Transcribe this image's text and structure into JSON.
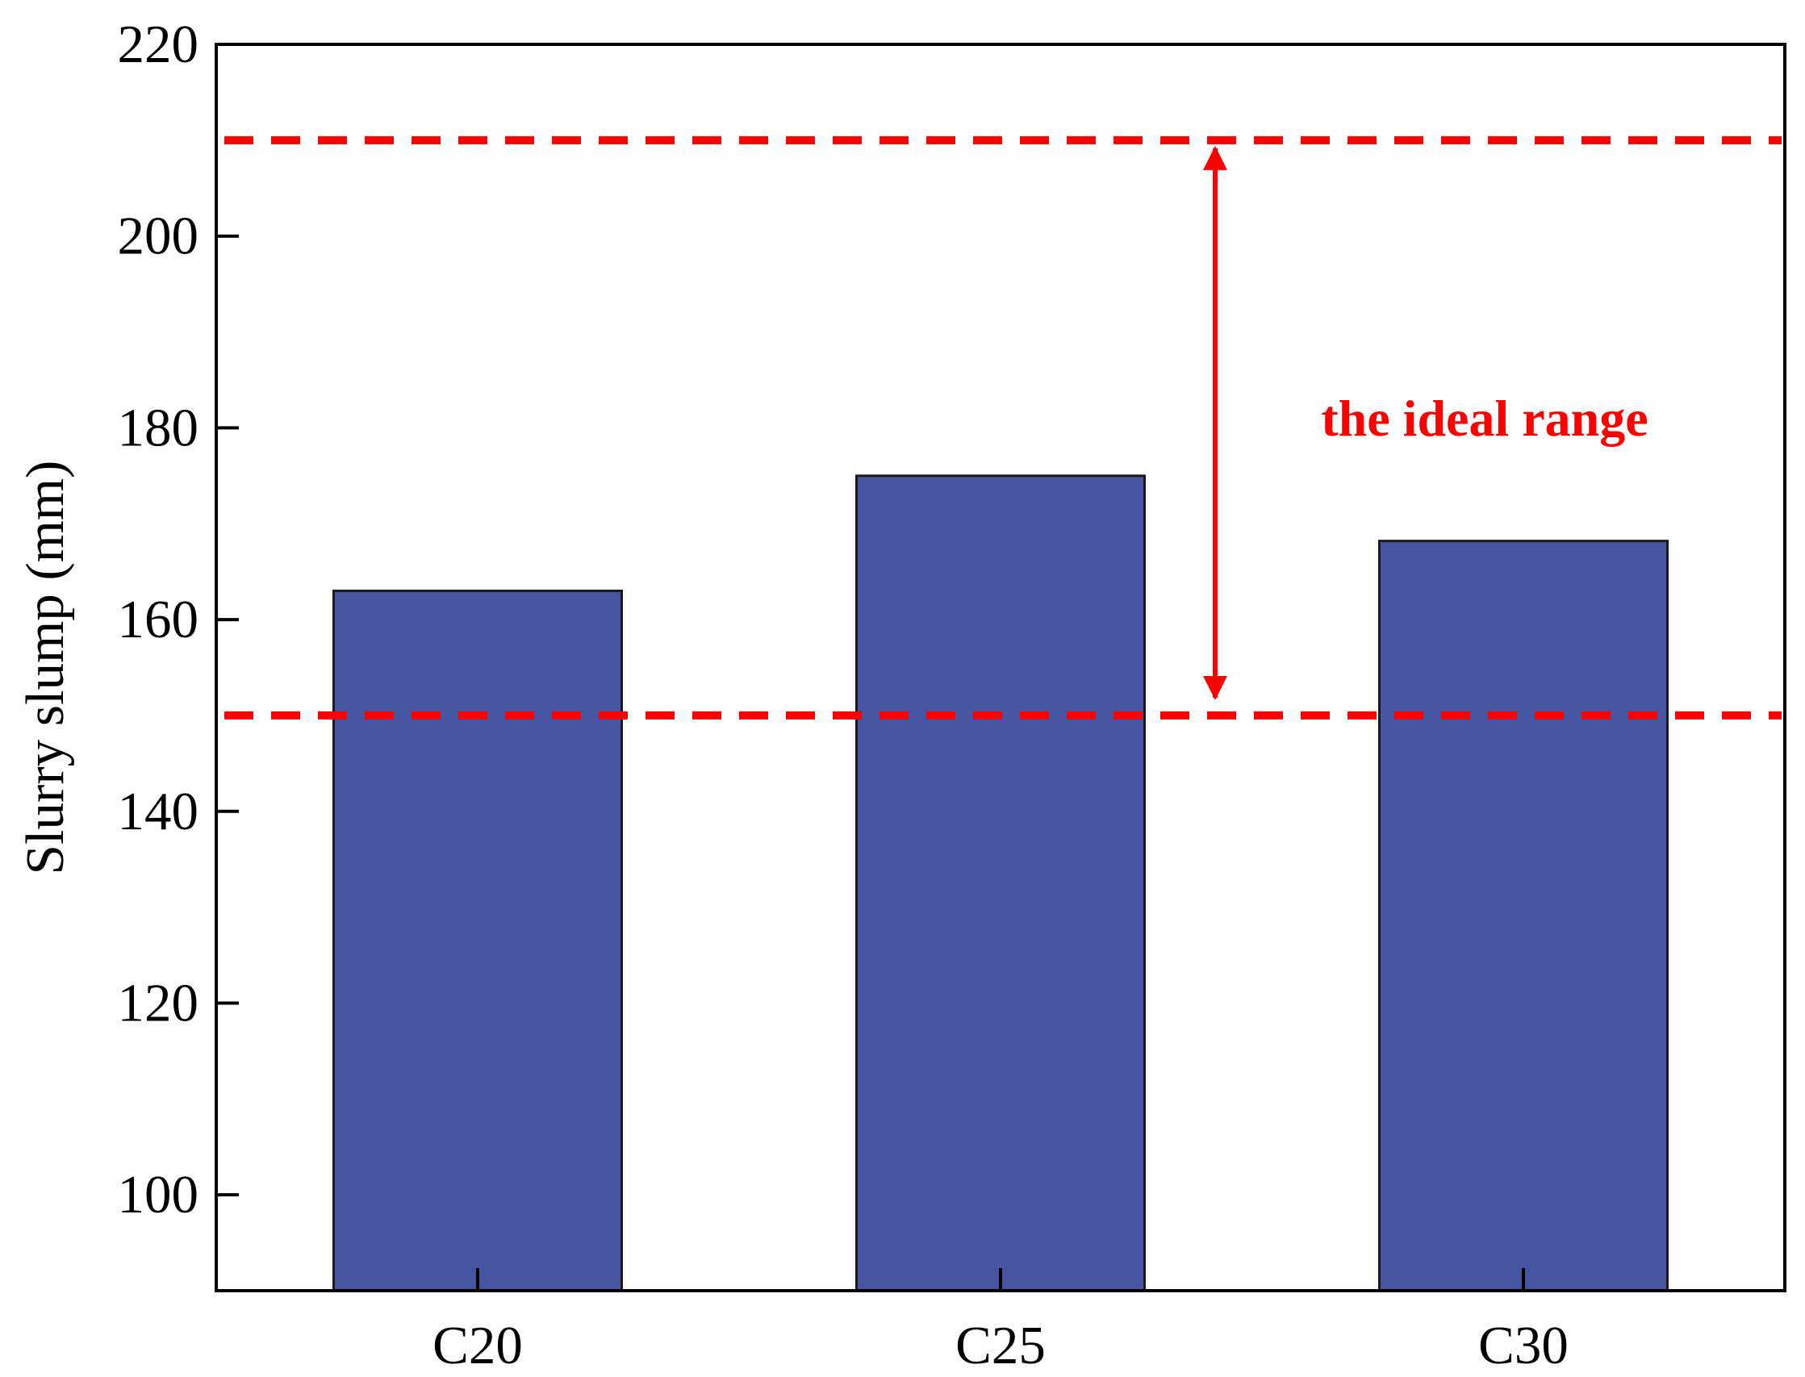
{
  "chart_data": {
    "type": "bar",
    "title": "",
    "xlabel": "",
    "ylabel": "Slurry slump (mm)",
    "categories": [
      "C20",
      "C25",
      "C30"
    ],
    "values": [
      163,
      175,
      168.2
    ],
    "ylim": [
      90,
      220
    ],
    "yticks": [
      100,
      120,
      140,
      160,
      180,
      200,
      220
    ],
    "ytick_labels": [
      "100",
      "120",
      "140",
      "160",
      "180",
      "200",
      "220"
    ],
    "grid": false,
    "legend": "none",
    "bar_color": "#4755a3",
    "reference_lines": [
      {
        "y": 210,
        "style": "dashed",
        "color": "#ff0000"
      },
      {
        "y": 150,
        "style": "dashed",
        "color": "#ff0000"
      }
    ],
    "annotation": {
      "text": "the ideal range",
      "range": [
        150,
        210
      ],
      "color": "#ff0000"
    }
  }
}
